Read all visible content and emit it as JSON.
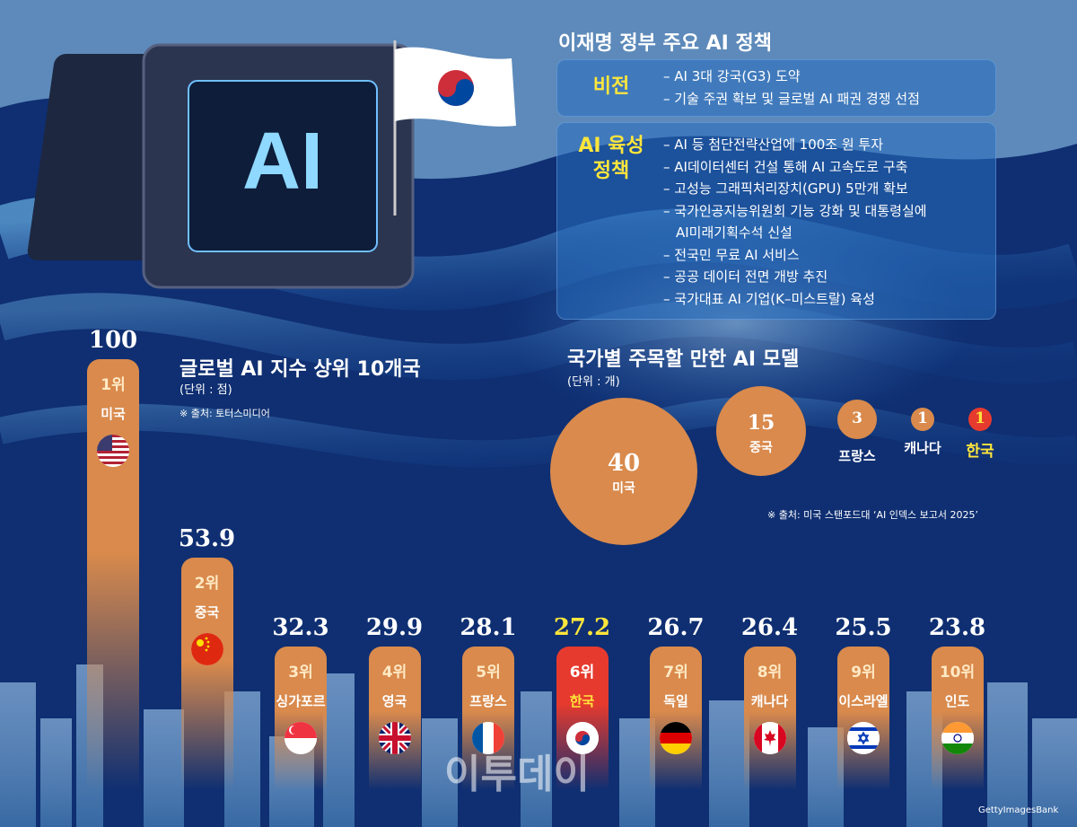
{
  "policy": {
    "title": "이재명 정부 주요 AI 정책",
    "vision_label": "비전",
    "vision_items": [
      "– AI 3대 강국(G3) 도약",
      "– 기술 주권 확보 및 글로벌 AI 패권 경쟁 선점"
    ],
    "growth_label_1": "AI 육성",
    "growth_label_2": "정책",
    "growth_items": [
      "– AI 등 첨단전략산업에 100조 원 투자",
      "– AI데이터센터 건설 통해 AI 고속도로 구축",
      "– 고성능 그래픽처리장치(GPU) 5만개 확보",
      "– 국가인공지능위원회 기능 강화 및 대통령실에",
      "   AI미래기획수석 신설",
      "– 전국민 무료 AI 서비스",
      "– 공공 데이터 전면 개방 추진",
      "– 국가대표 AI 기업(K–미스트랄) 육성"
    ]
  },
  "chip_label": "AI",
  "index_chart": {
    "title": "글로벌 AI 지수 상위 10개국",
    "unit": "(단위 : 점)",
    "source": "※ 출처: 토터스미디어"
  },
  "models_chart": {
    "title": "국가별 주목할 만한 AI 모델",
    "unit": "(단위 : 개)",
    "source": "※ 출처: 미국 스탠포드대 ‘AI 인덱스 보고서 2025’"
  },
  "chart_data": [
    {
      "type": "bar",
      "title": "글로벌 AI 지수 상위 10개국",
      "ylabel": "(단위 : 점)",
      "categories": [
        "미국",
        "중국",
        "싱가포르",
        "영국",
        "프랑스",
        "한국",
        "독일",
        "캐나다",
        "이스라엘",
        "인도"
      ],
      "ranks": [
        "1위",
        "2위",
        "3위",
        "4위",
        "5위",
        "6위",
        "7위",
        "8위",
        "9위",
        "10위"
      ],
      "values": [
        100,
        53.9,
        32.3,
        29.9,
        28.1,
        27.2,
        26.7,
        26.4,
        25.5,
        23.8
      ],
      "value_labels": [
        "100",
        "53.9",
        "32.3",
        "29.9",
        "28.1",
        "27.2",
        "26.7",
        "26.4",
        "25.5",
        "23.8"
      ],
      "highlight": "한국",
      "bar_color": "#d98a4c",
      "highlight_color": "#e63a2e",
      "highlight_text_color": "#ffe63b"
    },
    {
      "type": "bubble",
      "title": "국가별 주목할 만한 AI 모델",
      "ylabel": "(단위 : 개)",
      "categories": [
        "미국",
        "중국",
        "프랑스",
        "캐나다",
        "한국"
      ],
      "values": [
        40,
        15,
        3,
        1,
        1
      ],
      "value_labels": [
        "40",
        "15",
        "3",
        "1",
        "1"
      ],
      "highlight": "한국"
    }
  ],
  "watermark": "이투데이",
  "credit": "GettyImagesBank"
}
